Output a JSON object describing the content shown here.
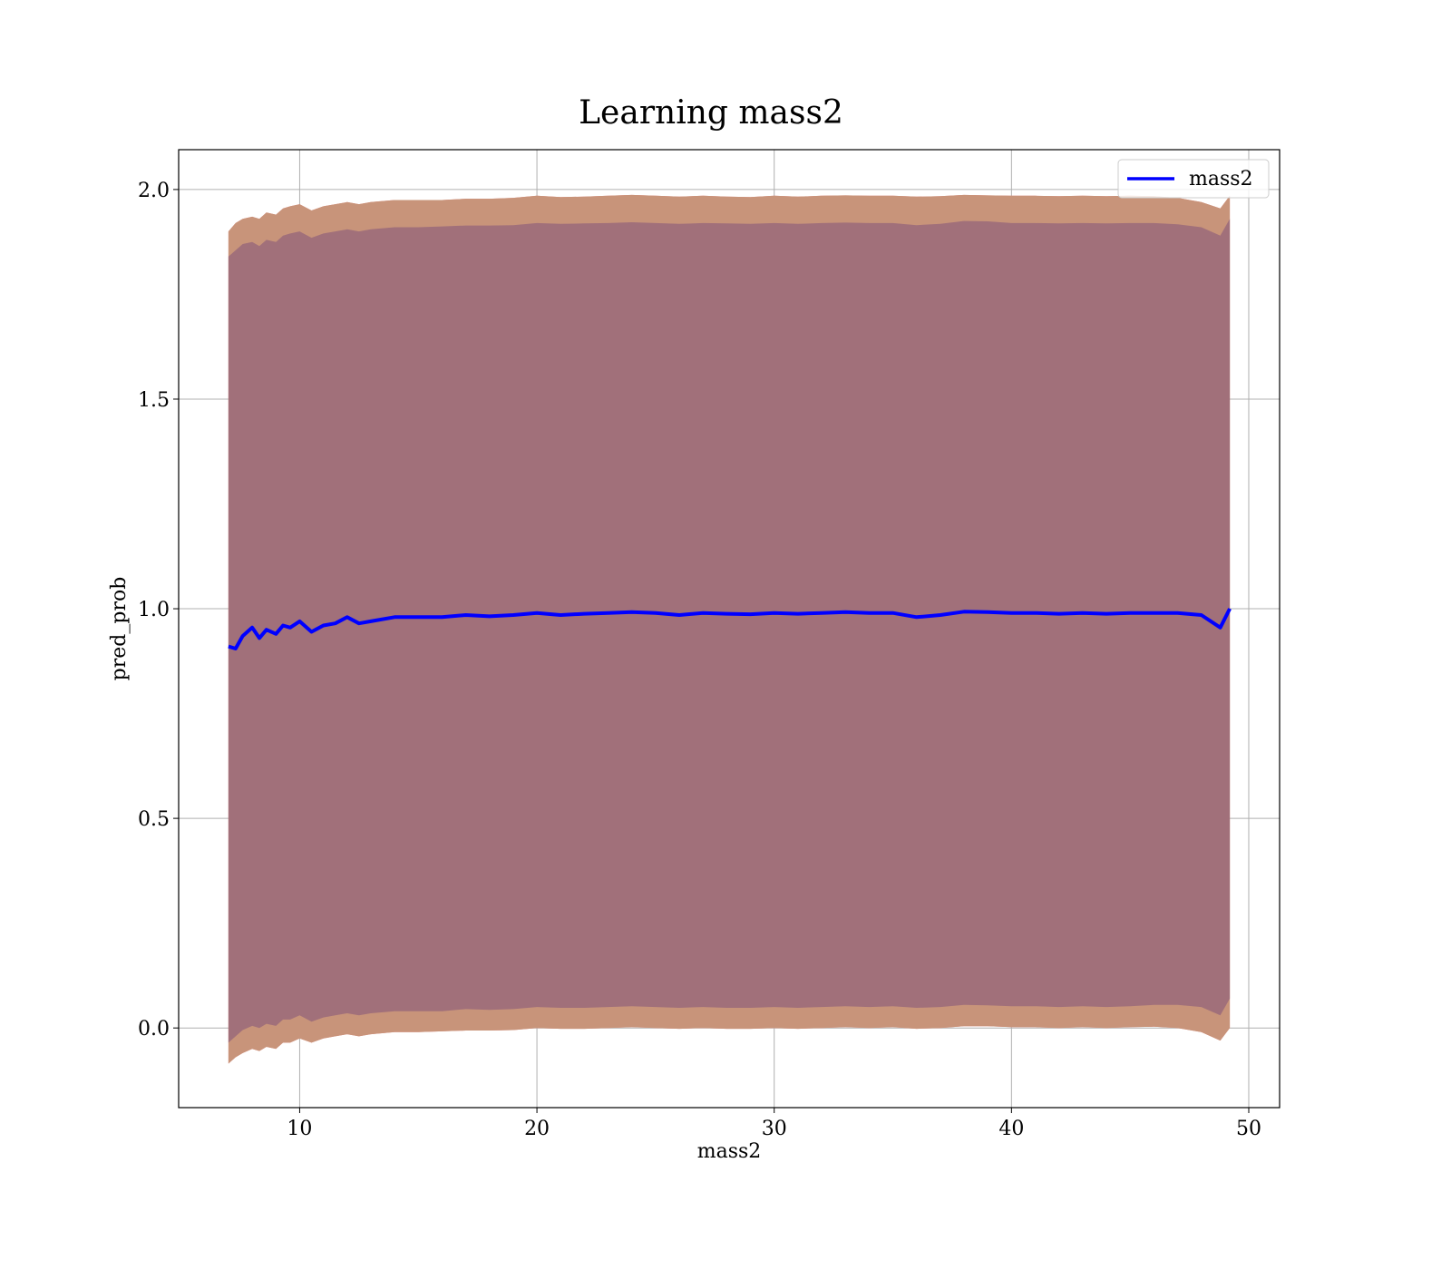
{
  "chart_data": {
    "type": "line",
    "title": "Learning mass2",
    "xlabel": "mass2",
    "ylabel": "pred_prob",
    "xlim": [
      4.9,
      51.3
    ],
    "ylim": [
      -0.19,
      2.095
    ],
    "xticks": [
      10,
      20,
      30,
      40,
      50
    ],
    "xtick_labels": [
      "10",
      "20",
      "30",
      "40",
      "50"
    ],
    "yticks": [
      0.0,
      0.5,
      1.0,
      1.5,
      2.0
    ],
    "ytick_labels": [
      "0.0",
      "0.5",
      "1.0",
      "1.5",
      "2.0"
    ],
    "grid": true,
    "legend_position": "top-right",
    "colors": {
      "line": "#0000ff",
      "band_outer": "#f08080",
      "band_mid": "#c8947a",
      "band_inner": "#a1707a",
      "grid": "#b0b0b0"
    },
    "series": [
      {
        "name": "mass2",
        "x": [
          7.0,
          7.3,
          7.6,
          8.0,
          8.3,
          8.6,
          9.0,
          9.3,
          9.6,
          10.0,
          10.5,
          11.0,
          11.5,
          12.0,
          12.5,
          13.0,
          14.0,
          15.0,
          16.0,
          17.0,
          18.0,
          19.0,
          20.0,
          21.0,
          22.0,
          23.0,
          24.0,
          25.0,
          26.0,
          27.0,
          28.0,
          29.0,
          30.0,
          31.0,
          32.0,
          33.0,
          34.0,
          35.0,
          36.0,
          37.0,
          38.0,
          39.0,
          40.0,
          41.0,
          42.0,
          43.0,
          44.0,
          45.0,
          46.0,
          47.0,
          48.0,
          48.8,
          49.2
        ],
        "y": [
          0.91,
          0.905,
          0.935,
          0.955,
          0.93,
          0.95,
          0.94,
          0.96,
          0.955,
          0.97,
          0.945,
          0.96,
          0.965,
          0.98,
          0.965,
          0.97,
          0.98,
          0.98,
          0.98,
          0.985,
          0.982,
          0.985,
          0.99,
          0.985,
          0.988,
          0.99,
          0.992,
          0.99,
          0.985,
          0.99,
          0.988,
          0.987,
          0.99,
          0.988,
          0.99,
          0.992,
          0.99,
          0.99,
          0.98,
          0.985,
          0.993,
          0.992,
          0.99,
          0.99,
          0.988,
          0.99,
          0.988,
          0.99,
          0.99,
          0.99,
          0.985,
          0.955,
          1.0
        ],
        "band_upper_outer": [
          1.9,
          1.92,
          1.93,
          1.935,
          1.93,
          1.945,
          1.94,
          1.955,
          1.96,
          1.965,
          1.95,
          1.96,
          1.965,
          1.97,
          1.965,
          1.97,
          1.975,
          1.975,
          1.975,
          1.978,
          1.978,
          1.98,
          1.985,
          1.982,
          1.983,
          1.985,
          1.987,
          1.985,
          1.983,
          1.985,
          1.983,
          1.982,
          1.985,
          1.983,
          1.985,
          1.986,
          1.985,
          1.985,
          1.983,
          1.984,
          1.987,
          1.986,
          1.985,
          1.985,
          1.984,
          1.985,
          1.984,
          1.985,
          1.984,
          1.98,
          1.97,
          1.955,
          1.985
        ],
        "band_upper_inner": [
          1.84,
          1.855,
          1.87,
          1.875,
          1.865,
          1.88,
          1.875,
          1.89,
          1.895,
          1.9,
          1.885,
          1.895,
          1.9,
          1.905,
          1.9,
          1.905,
          1.91,
          1.91,
          1.912,
          1.914,
          1.914,
          1.915,
          1.92,
          1.918,
          1.919,
          1.92,
          1.922,
          1.92,
          1.918,
          1.92,
          1.919,
          1.918,
          1.92,
          1.918,
          1.92,
          1.921,
          1.92,
          1.92,
          1.915,
          1.918,
          1.925,
          1.924,
          1.92,
          1.92,
          1.919,
          1.92,
          1.919,
          1.92,
          1.92,
          1.917,
          1.91,
          1.89,
          1.93
        ],
        "band_lower_inner": [
          -0.035,
          -0.02,
          -0.005,
          0.005,
          0.0,
          0.01,
          0.005,
          0.02,
          0.02,
          0.03,
          0.015,
          0.025,
          0.03,
          0.035,
          0.03,
          0.035,
          0.04,
          0.04,
          0.04,
          0.045,
          0.043,
          0.045,
          0.05,
          0.048,
          0.048,
          0.05,
          0.052,
          0.05,
          0.048,
          0.05,
          0.048,
          0.048,
          0.05,
          0.048,
          0.05,
          0.052,
          0.05,
          0.052,
          0.048,
          0.05,
          0.055,
          0.054,
          0.052,
          0.052,
          0.05,
          0.052,
          0.05,
          0.052,
          0.055,
          0.055,
          0.05,
          0.03,
          0.07
        ],
        "band_lower_outer": [
          -0.085,
          -0.07,
          -0.06,
          -0.05,
          -0.055,
          -0.045,
          -0.05,
          -0.035,
          -0.035,
          -0.025,
          -0.035,
          -0.025,
          -0.02,
          -0.015,
          -0.02,
          -0.015,
          -0.01,
          -0.01,
          -0.008,
          -0.006,
          -0.006,
          -0.005,
          0.0,
          -0.002,
          -0.002,
          0.0,
          0.002,
          0.0,
          -0.002,
          0.0,
          -0.002,
          -0.002,
          0.0,
          -0.002,
          0.0,
          0.002,
          0.0,
          0.002,
          -0.002,
          0.0,
          0.004,
          0.004,
          0.002,
          0.002,
          0.0,
          0.002,
          0.0,
          0.002,
          0.003,
          0.0,
          -0.01,
          -0.03,
          0.0
        ]
      }
    ]
  }
}
